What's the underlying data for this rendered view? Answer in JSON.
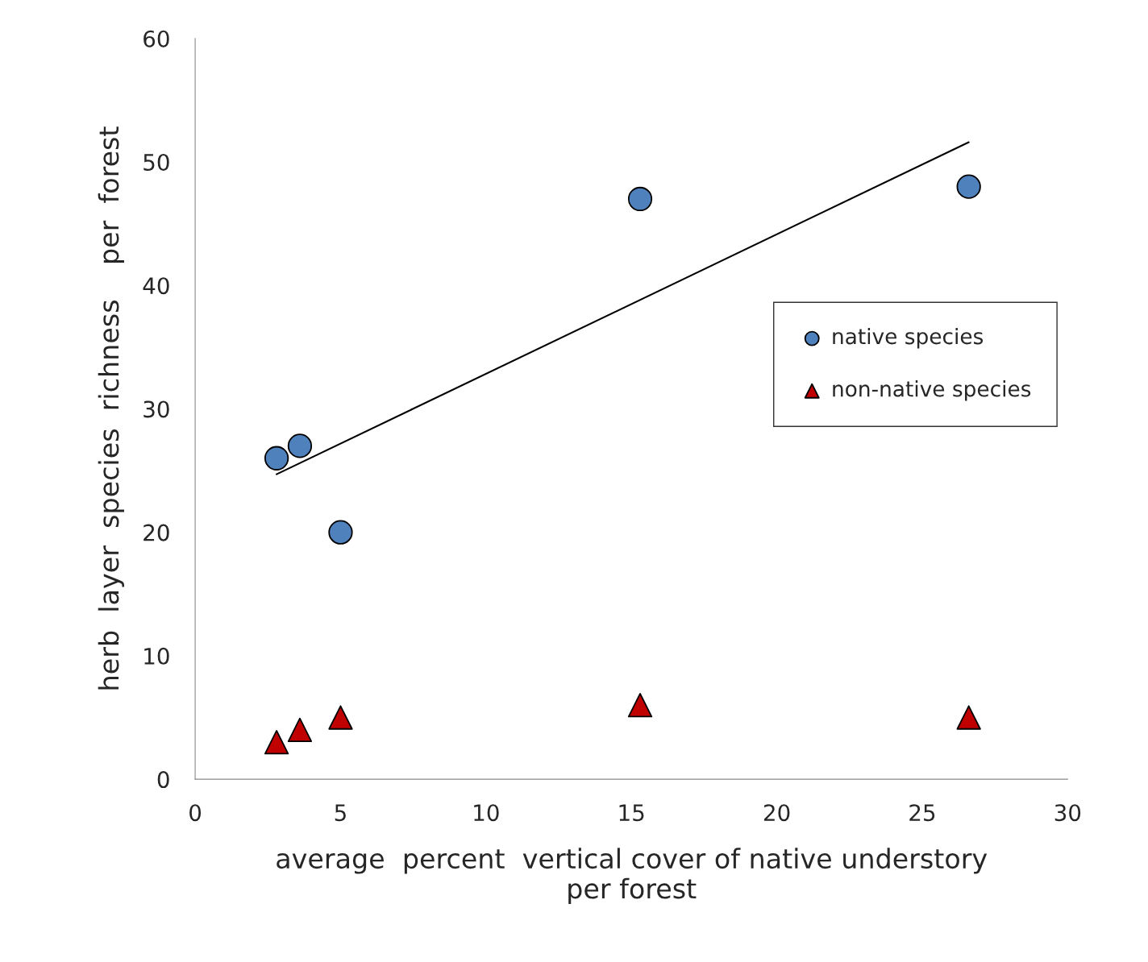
{
  "chart_data": {
    "type": "scatter",
    "xlabel": "average  percent  vertical cover of native understory\nper forest",
    "ylabel": "herb  layer  species  richness    per  forest",
    "xlim": [
      0,
      30
    ],
    "xticks": [
      0,
      5,
      10,
      15,
      20,
      25,
      30
    ],
    "ylim": [
      0,
      60
    ],
    "yticks": [
      0,
      10,
      20,
      30,
      40,
      50,
      60
    ],
    "grid": false,
    "legend": "right",
    "series": [
      {
        "name": "native species",
        "color": "#4f81bd",
        "marker": "circle",
        "x": [
          2.8,
          3.6,
          5.0,
          15.3,
          26.6
        ],
        "values": [
          26,
          27,
          20,
          47,
          48
        ]
      },
      {
        "name": "non-native species",
        "color": "#c00000",
        "marker": "triangle",
        "x": [
          2.8,
          3.6,
          5.0,
          15.3,
          26.6
        ],
        "values": [
          3,
          4,
          5,
          6,
          5
        ]
      },
      {
        "type": "line",
        "color": "#000000",
        "marker": "none",
        "x": [
          2.8,
          26.6
        ],
        "values": [
          24.7,
          51.6
        ]
      }
    ]
  }
}
